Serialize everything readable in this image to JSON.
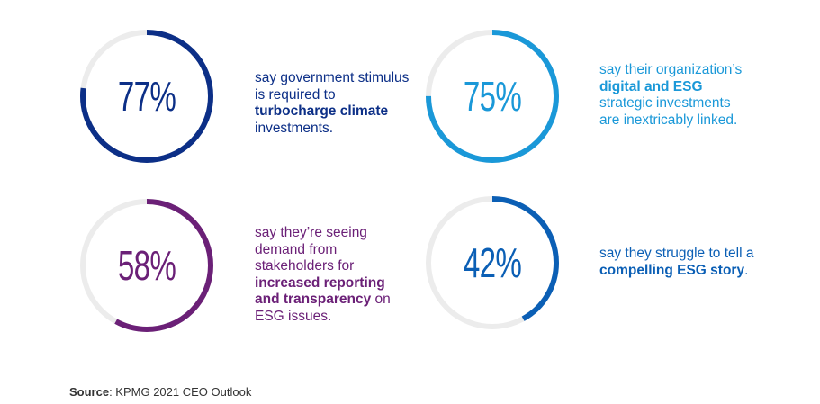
{
  "chart_data": {
    "type": "donut-gauges",
    "track_color": "#ececec",
    "items": [
      {
        "value": 77,
        "label": "77%",
        "color": "#0c2f87",
        "text": [
          "say government stimulus is required to ",
          "turbocharge climate",
          " investments."
        ]
      },
      {
        "value": 75,
        "label": "75%",
        "color": "#1a98d8",
        "text": [
          "say their organization’s ",
          "digital and ESG",
          " strategic investments are inextricably linked."
        ]
      },
      {
        "value": 58,
        "label": "58%",
        "color": "#6b2077",
        "text": [
          "say they’re seeing demand from stakeholders for ",
          "increased reporting and transparency",
          " on ESG issues."
        ]
      },
      {
        "value": 42,
        "label": "42%",
        "color": "#0b5fb5",
        "text": [
          "say they struggle to tell a ",
          "compelling ESG story",
          "."
        ]
      }
    ]
  },
  "source": {
    "label": "Source",
    "text": ": KPMG 2021 CEO Outlook"
  }
}
